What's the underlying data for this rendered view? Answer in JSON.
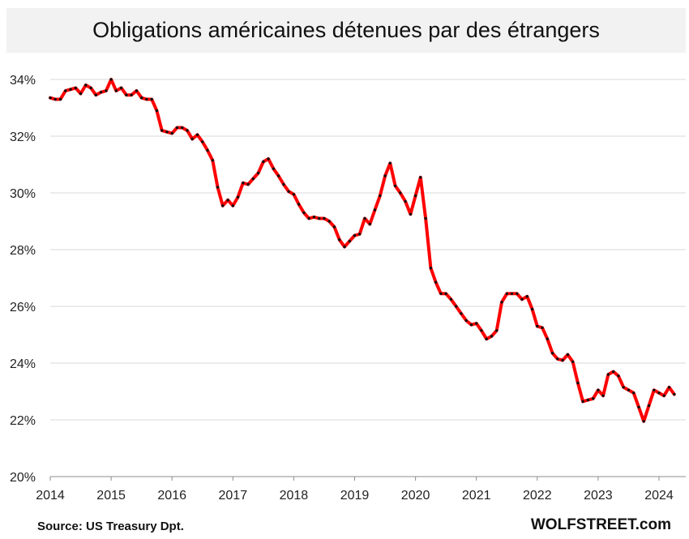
{
  "chart_data": {
    "type": "line",
    "title": "Obligations américaines détenues par des étrangers",
    "xlabel": "",
    "ylabel": "",
    "x_ticks": [
      "2014",
      "2015",
      "2016",
      "2017",
      "2018",
      "2019",
      "2020",
      "2021",
      "2022",
      "2023",
      "2024"
    ],
    "y_ticks": [
      "20%",
      "22%",
      "24%",
      "26%",
      "28%",
      "30%",
      "32%",
      "34%"
    ],
    "xlim": [
      2014,
      2024.3
    ],
    "ylim": [
      20,
      34.5
    ],
    "grid": true,
    "legend": "none",
    "line_color": "#ff0000",
    "marker_color": "#111111",
    "series": [
      {
        "x": [
          2014.0,
          2014.083,
          2014.167,
          2014.25,
          2014.333,
          2014.417,
          2014.5,
          2014.583,
          2014.667,
          2014.75,
          2014.833,
          2014.917,
          2015.0,
          2015.083,
          2015.167,
          2015.25,
          2015.333,
          2015.417,
          2015.5,
          2015.583,
          2015.667,
          2015.75,
          2015.833,
          2015.917,
          2016.0,
          2016.083,
          2016.167,
          2016.25,
          2016.333,
          2016.417,
          2016.5,
          2016.583,
          2016.667,
          2016.75,
          2016.833,
          2016.917,
          2017.0,
          2017.083,
          2017.167,
          2017.25,
          2017.333,
          2017.417,
          2017.5,
          2017.583,
          2017.667,
          2017.75,
          2017.833,
          2017.917,
          2018.0,
          2018.083,
          2018.167,
          2018.25,
          2018.333,
          2018.417,
          2018.5,
          2018.583,
          2018.667,
          2018.75,
          2018.833,
          2018.917,
          2019.0,
          2019.083,
          2019.167,
          2019.25,
          2019.333,
          2019.417,
          2019.5,
          2019.583,
          2019.667,
          2019.75,
          2019.833,
          2019.917,
          2020.0,
          2020.083,
          2020.167,
          2020.25,
          2020.333,
          2020.417,
          2020.5,
          2020.583,
          2020.667,
          2020.75,
          2020.833,
          2020.917,
          2021.0,
          2021.083,
          2021.167,
          2021.25,
          2021.333,
          2021.417,
          2021.5,
          2021.583,
          2021.667,
          2021.75,
          2021.833,
          2021.917,
          2022.0,
          2022.083,
          2022.167,
          2022.25,
          2022.333,
          2022.417,
          2022.5,
          2022.583,
          2022.667,
          2022.75,
          2022.833,
          2022.917,
          2023.0,
          2023.083,
          2023.167,
          2023.25,
          2023.333,
          2023.417,
          2023.5,
          2023.583,
          2023.667,
          2023.75,
          2023.833,
          2023.917,
          2024.0,
          2024.083,
          2024.167,
          2024.25
        ],
        "y": [
          33.35,
          33.3,
          33.3,
          33.6,
          33.65,
          33.7,
          33.5,
          33.8,
          33.7,
          33.45,
          33.55,
          33.6,
          34.0,
          33.6,
          33.7,
          33.45,
          33.45,
          33.6,
          33.35,
          33.3,
          33.3,
          32.9,
          32.2,
          32.15,
          32.1,
          32.3,
          32.3,
          32.2,
          31.9,
          32.05,
          31.8,
          31.5,
          31.15,
          30.2,
          29.55,
          29.75,
          29.55,
          29.85,
          30.35,
          30.3,
          30.5,
          30.7,
          31.1,
          31.2,
          30.85,
          30.6,
          30.3,
          30.05,
          29.95,
          29.6,
          29.3,
          29.1,
          29.15,
          29.1,
          29.1,
          29.0,
          28.8,
          28.35,
          28.1,
          28.3,
          28.5,
          28.55,
          29.1,
          28.9,
          29.4,
          29.9,
          30.6,
          31.05,
          30.25,
          30.0,
          29.7,
          29.25,
          29.9,
          30.55,
          29.1,
          27.35,
          26.85,
          26.45,
          26.45,
          26.25,
          26.0,
          25.75,
          25.5,
          25.35,
          25.4,
          25.15,
          24.85,
          24.95,
          25.15,
          26.15,
          26.45,
          26.45,
          26.45,
          26.25,
          26.35,
          25.9,
          25.3,
          25.25,
          24.85,
          24.35,
          24.15,
          24.1,
          24.3,
          24.05,
          23.3,
          22.65,
          22.7,
          22.75,
          23.05,
          22.85,
          23.6,
          23.7,
          23.55,
          23.15,
          23.05,
          22.95,
          22.45,
          21.95,
          22.5,
          23.05,
          22.95,
          22.85,
          23.15,
          22.9
        ]
      }
    ]
  },
  "footer": {
    "source": "Source: US Treasury  Dpt.",
    "brand": "WOLFSTREET.com"
  }
}
